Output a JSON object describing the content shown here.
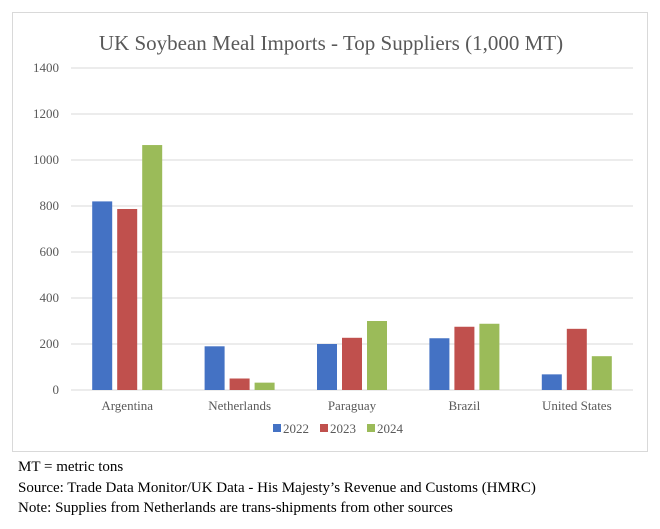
{
  "notes": [
    "MT = metric tons",
    "Source: Trade Data Monitor/UK Data - His Majesty’s Revenue and Customs (HMRC)",
    "Note: Supplies from Netherlands are trans-shipments from other sources"
  ],
  "chart_data": {
    "type": "bar",
    "title": "UK Soybean Meal Imports - Top Suppliers (1,000 MT)",
    "xlabel": "",
    "ylabel": "",
    "categories": [
      "Argentina",
      "Netherlands",
      "Paraguay",
      "Brazil",
      "United States"
    ],
    "series": [
      {
        "name": "2022",
        "color": "#4472c4",
        "values": [
          820,
          190,
          200,
          225,
          68
        ]
      },
      {
        "name": "2023",
        "color": "#c0504d",
        "values": [
          787,
          50,
          227,
          275,
          266
        ]
      },
      {
        "name": "2024",
        "color": "#9bbb59",
        "values": [
          1065,
          32,
          300,
          288,
          147
        ]
      }
    ],
    "ylim": [
      0,
      1400
    ],
    "yticks": [
      0,
      200,
      400,
      600,
      800,
      1000,
      1200,
      1400
    ],
    "grid": true,
    "legend_position": "bottom"
  }
}
